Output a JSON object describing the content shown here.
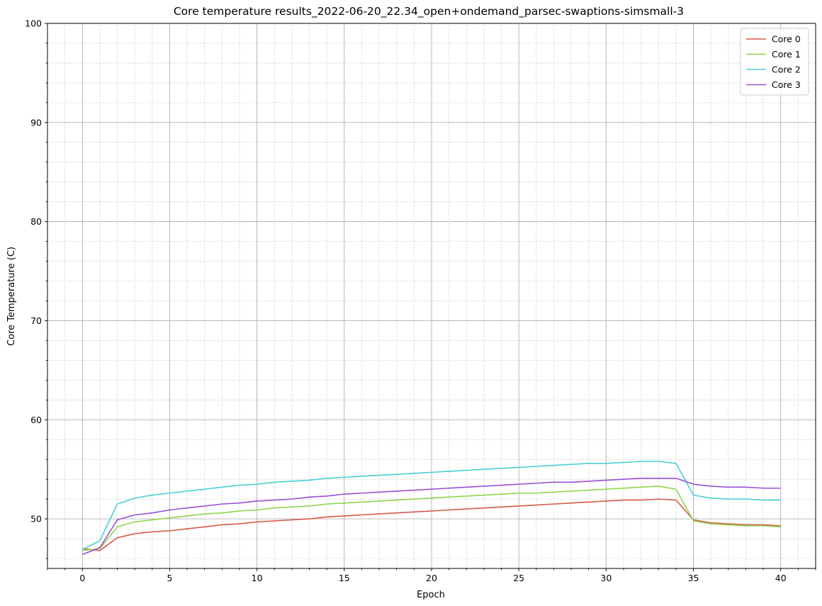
{
  "chart_data": {
    "type": "line",
    "title": "Core temperature results_2022-06-20_22.34_open+ondemand_parsec-swaptions-simsmall-3",
    "xlabel": "Epoch",
    "ylabel": "Core Temperature (C)",
    "xlim": [
      -2,
      42
    ],
    "ylim": [
      45,
      100
    ],
    "xticks": [
      0,
      5,
      10,
      15,
      20,
      25,
      30,
      35,
      40
    ],
    "yticks": [
      50,
      60,
      70,
      80,
      90,
      100
    ],
    "grid": "major solid, minor dotted",
    "legend_position": "top-right",
    "x": [
      0,
      1,
      2,
      3,
      4,
      5,
      6,
      7,
      8,
      9,
      10,
      11,
      12,
      13,
      14,
      15,
      16,
      17,
      18,
      19,
      20,
      21,
      22,
      23,
      24,
      25,
      26,
      27,
      28,
      29,
      30,
      31,
      32,
      33,
      34,
      35,
      36,
      37,
      38,
      39,
      40
    ],
    "series": [
      {
        "name": "Core 0",
        "color": "#d65a4b",
        "values": [
          47.0,
          46.8,
          48.1,
          48.5,
          48.7,
          48.8,
          49.0,
          49.2,
          49.4,
          49.5,
          49.7,
          49.8,
          49.9,
          50.0,
          50.2,
          50.3,
          50.4,
          50.5,
          50.6,
          50.7,
          50.8,
          50.9,
          51.0,
          51.1,
          51.2,
          51.3,
          51.4,
          51.5,
          51.6,
          51.7,
          51.8,
          51.9,
          51.9,
          52.0,
          51.9,
          49.9,
          49.6,
          49.5,
          49.4,
          49.4,
          49.3
        ]
      },
      {
        "name": "Core 1",
        "color": "#8cd649",
        "values": [
          46.8,
          47.0,
          49.2,
          49.7,
          49.9,
          50.1,
          50.3,
          50.5,
          50.6,
          50.8,
          50.9,
          51.1,
          51.2,
          51.3,
          51.5,
          51.6,
          51.7,
          51.8,
          51.9,
          52.0,
          52.1,
          52.2,
          52.3,
          52.4,
          52.5,
          52.6,
          52.6,
          52.7,
          52.8,
          52.9,
          53.0,
          53.1,
          53.2,
          53.3,
          53.0,
          49.8,
          49.5,
          49.4,
          49.3,
          49.3,
          49.2
        ]
      },
      {
        "name": "Core 2",
        "color": "#4acfd6",
        "values": [
          46.9,
          47.8,
          51.5,
          52.1,
          52.4,
          52.6,
          52.8,
          53.0,
          53.2,
          53.4,
          53.5,
          53.7,
          53.8,
          53.9,
          54.1,
          54.2,
          54.3,
          54.4,
          54.5,
          54.6,
          54.7,
          54.8,
          54.9,
          55.0,
          55.1,
          55.2,
          55.3,
          55.4,
          55.5,
          55.6,
          55.6,
          55.7,
          55.8,
          55.8,
          55.6,
          52.4,
          52.1,
          52.0,
          52.0,
          51.9,
          51.9
        ]
      },
      {
        "name": "Core 3",
        "color": "#9a4fd6",
        "values": [
          46.4,
          47.1,
          49.9,
          50.4,
          50.6,
          50.9,
          51.1,
          51.3,
          51.5,
          51.6,
          51.8,
          51.9,
          52.0,
          52.2,
          52.3,
          52.5,
          52.6,
          52.7,
          52.8,
          52.9,
          53.0,
          53.1,
          53.2,
          53.3,
          53.4,
          53.5,
          53.6,
          53.7,
          53.7,
          53.8,
          53.9,
          54.0,
          54.1,
          54.1,
          54.1,
          53.5,
          53.3,
          53.2,
          53.2,
          53.1,
          53.1
        ]
      }
    ]
  }
}
